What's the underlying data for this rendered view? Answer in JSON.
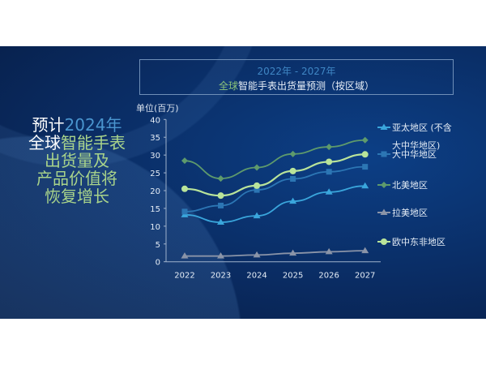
{
  "headline": {
    "line1_white": "预计",
    "line1_blue": "2024年",
    "line2_white": "全球",
    "line2_green": "智能手表",
    "line3": "出货量及",
    "line4": "产品价值将",
    "line5": "恢复增长"
  },
  "chart_data": {
    "type": "line",
    "title_line1": "2022年 - 2027年",
    "title_line2_green": "全球",
    "title_line2": "智能手表出货量预测（按区域）",
    "ylabel": "单位(百万)",
    "categories": [
      "2022",
      "2023",
      "2024",
      "2025",
      "2026",
      "2027"
    ],
    "yticks": [
      0,
      5,
      10,
      15,
      20,
      25,
      30,
      35,
      40
    ],
    "ylim": [
      0,
      40
    ],
    "grid": false,
    "legend_placement": "right",
    "series": [
      {
        "name": "亚太地区 (不含大中华地区)",
        "name_line1": "亚太地区 (不含",
        "name_line2": "大中华地区)",
        "marker": "triangle",
        "color": "#3aa6dc",
        "values": [
          13.2,
          11.1,
          12.9,
          17.0,
          19.6,
          21.3
        ]
      },
      {
        "name": "大中华地区",
        "marker": "square",
        "color": "#2c76b4",
        "values": [
          14.1,
          15.8,
          20.2,
          23.3,
          25.3,
          26.7
        ]
      },
      {
        "name": "北美地区",
        "marker": "diamond",
        "color": "#5e9a6c",
        "values": [
          28.4,
          23.4,
          26.5,
          30.3,
          32.3,
          34.2
        ]
      },
      {
        "name": "拉美地区",
        "marker": "triangle",
        "color": "#8a94a8",
        "values": [
          1.6,
          1.6,
          1.9,
          2.4,
          2.8,
          3.1
        ]
      },
      {
        "name": "欧中东非地区",
        "marker": "circle",
        "color": "#b9e49a",
        "values": [
          20.5,
          18.6,
          21.4,
          25.5,
          28.1,
          30.2
        ]
      }
    ]
  }
}
